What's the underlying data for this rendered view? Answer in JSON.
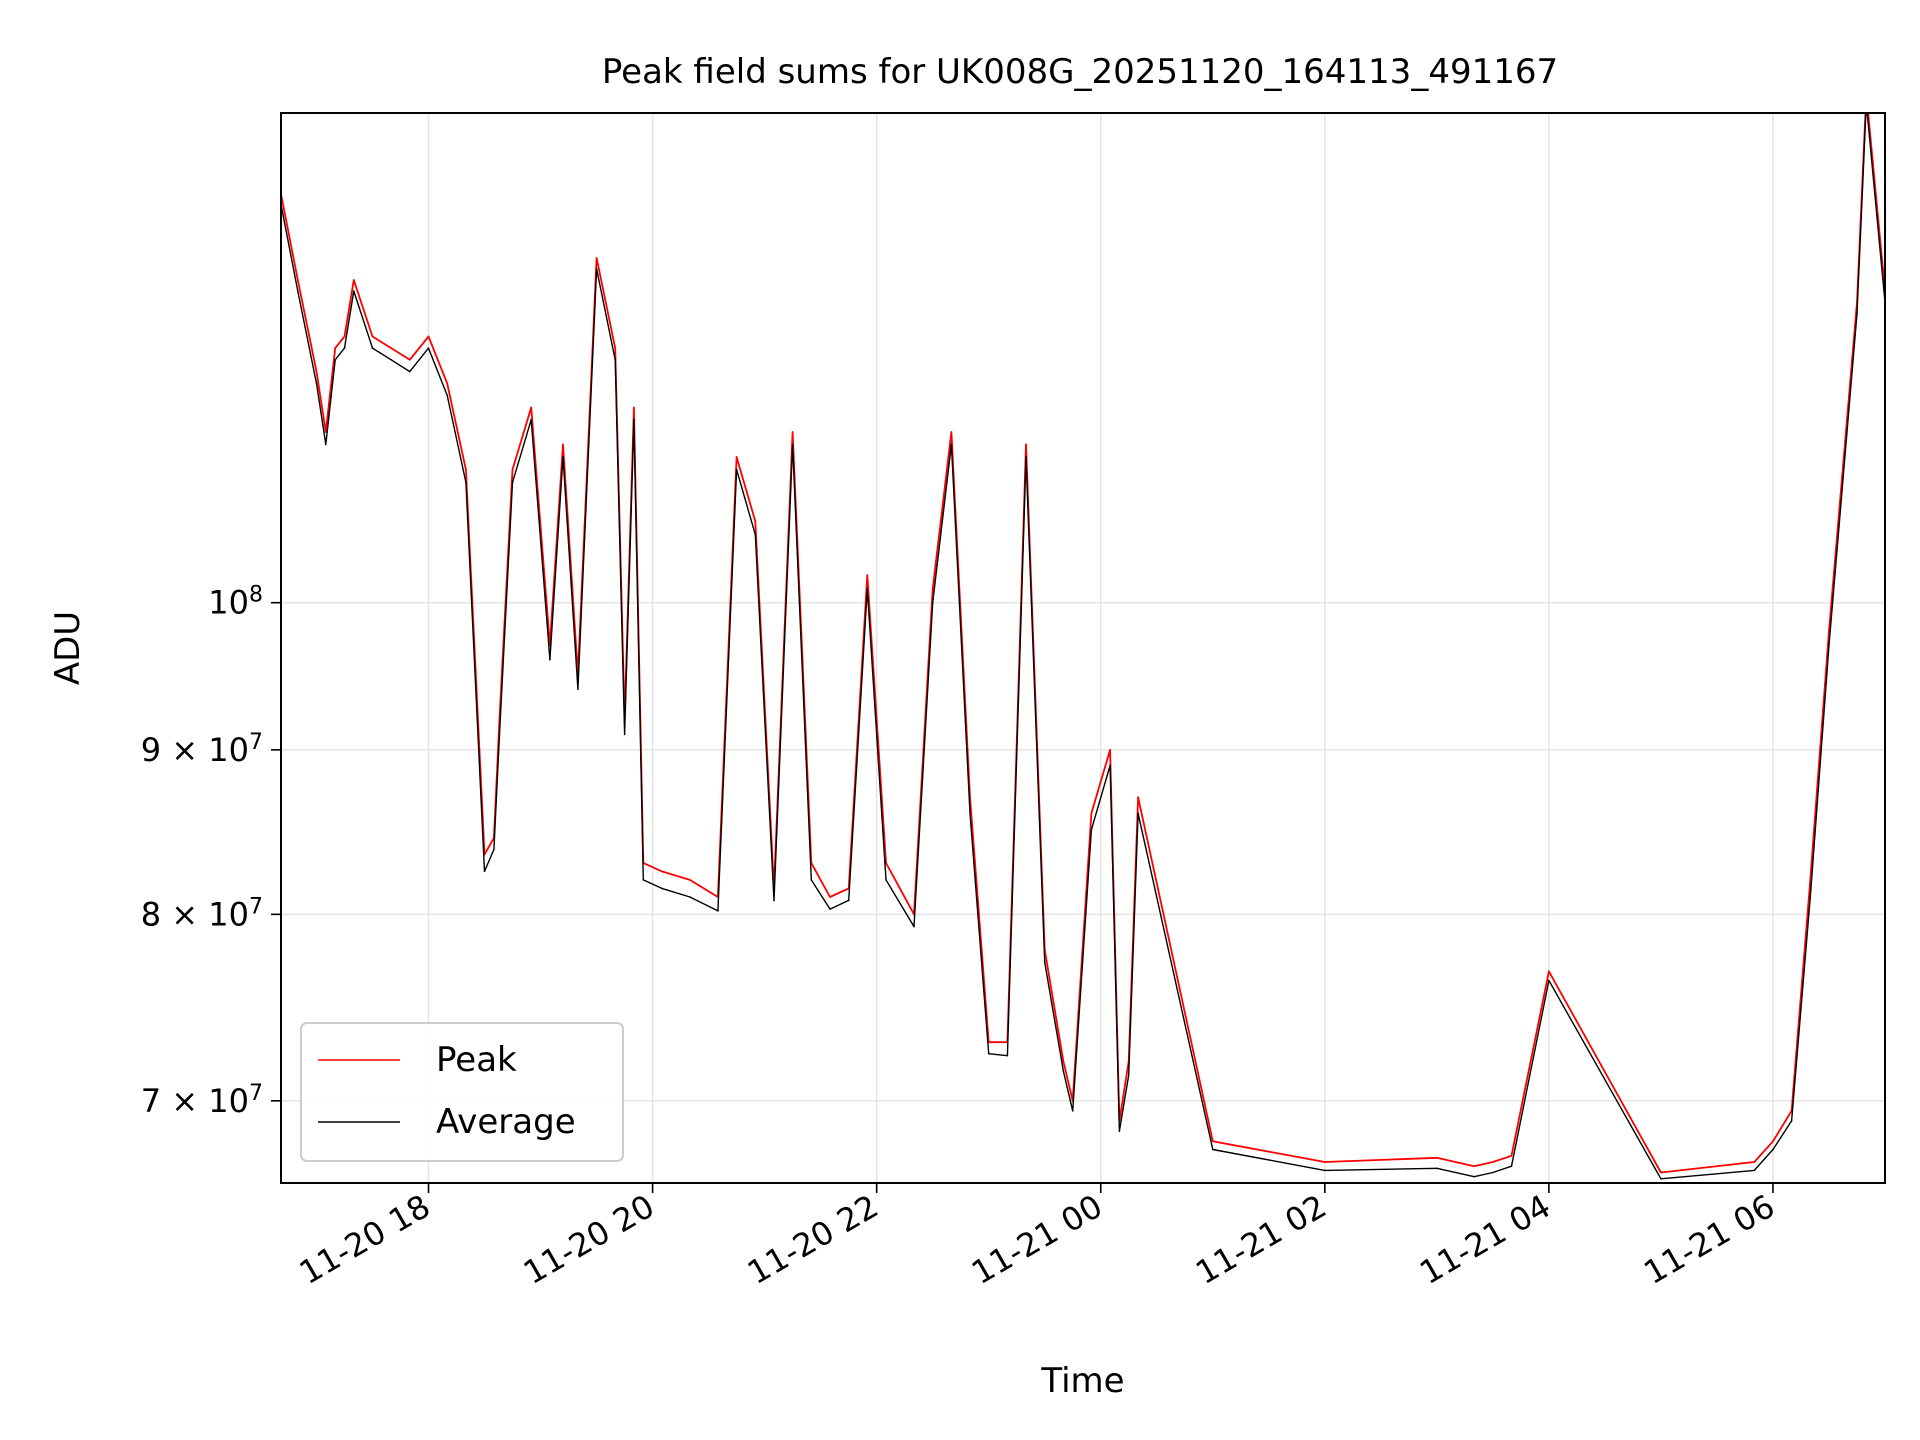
{
  "chart_data": {
    "type": "line",
    "title": "Peak field sums for UK008G_20251120_164113_491167",
    "xlabel": "Time",
    "ylabel": "ADU",
    "x_scale": "time",
    "y_scale": "log",
    "xlim": [
      "2025-11-20 16:41",
      "2025-11-21 07:00"
    ],
    "ylim": [
      66000000,
      142000000
    ],
    "x_ticks": [
      "2025-11-20 18:00",
      "2025-11-20 20:00",
      "2025-11-20 22:00",
      "2025-11-21 00:00",
      "2025-11-21 02:00",
      "2025-11-21 04:00",
      "2025-11-21 06:00"
    ],
    "x_tick_labels": [
      "11-20 18",
      "11-20 20",
      "11-20 22",
      "11-21 00",
      "11-21 02",
      "11-21 04",
      "11-21 06"
    ],
    "y_ticks": [
      70000000,
      80000000,
      90000000,
      100000000
    ],
    "y_tick_labels": [
      {
        "mant": "7 × 10",
        "exp": "7"
      },
      {
        "mant": "8 × 10",
        "exp": "7"
      },
      {
        "mant": "9 × 10",
        "exp": "7"
      },
      {
        "mant": "10",
        "exp": "8"
      }
    ],
    "grid": true,
    "legend": "lower-left",
    "series": [
      {
        "name": "Peak",
        "color": "#ff0000",
        "x": [
          "2025-11-20 16:41",
          "2025-11-20 16:50",
          "2025-11-20 17:00",
          "2025-11-20 17:05",
          "2025-11-20 17:10",
          "2025-11-20 17:15",
          "2025-11-20 17:20",
          "2025-11-20 17:30",
          "2025-11-20 17:40",
          "2025-11-20 17:50",
          "2025-11-20 18:00",
          "2025-11-20 18:10",
          "2025-11-20 18:20",
          "2025-11-20 18:30",
          "2025-11-20 18:35",
          "2025-11-20 18:38",
          "2025-11-20 18:45",
          "2025-11-20 18:55",
          "2025-11-20 19:05",
          "2025-11-20 19:12",
          "2025-11-20 19:20",
          "2025-11-20 19:30",
          "2025-11-20 19:40",
          "2025-11-20 19:45",
          "2025-11-20 19:50",
          "2025-11-20 19:55",
          "2025-11-20 20:05",
          "2025-11-20 20:20",
          "2025-11-20 20:35",
          "2025-11-20 20:45",
          "2025-11-20 20:55",
          "2025-11-20 21:05",
          "2025-11-20 21:15",
          "2025-11-20 21:25",
          "2025-11-20 21:35",
          "2025-11-20 21:45",
          "2025-11-20 21:55",
          "2025-11-20 22:05",
          "2025-11-20 22:20",
          "2025-11-20 22:30",
          "2025-11-20 22:40",
          "2025-11-20 22:50",
          "2025-11-20 23:00",
          "2025-11-20 23:10",
          "2025-11-20 23:20",
          "2025-11-20 23:30",
          "2025-11-20 23:40",
          "2025-11-20 23:45",
          "2025-11-20 23:55",
          "2025-11-21 00:05",
          "2025-11-21 00:10",
          "2025-11-21 00:15",
          "2025-11-21 00:20",
          "2025-11-21 01:00",
          "2025-11-21 02:00",
          "2025-11-21 03:00",
          "2025-11-21 03:20",
          "2025-11-21 03:30",
          "2025-11-21 03:40",
          "2025-11-21 04:00",
          "2025-11-21 05:00",
          "2025-11-21 05:50",
          "2025-11-21 06:00",
          "2025-11-21 06:10",
          "2025-11-21 06:20",
          "2025-11-21 06:30",
          "2025-11-21 06:45",
          "2025-11-21 06:50",
          "2025-11-21 07:00"
        ],
        "values": [
          134000000,
          126000000,
          118000000,
          113000000,
          120000000,
          121000000,
          126000000,
          121000000,
          120000000,
          119000000,
          121000000,
          117000000,
          110000000,
          83500000,
          84500000,
          92000000,
          110000000,
          115000000,
          97000000,
          112000000,
          95000000,
          128000000,
          120000000,
          92000000,
          115000000,
          83000000,
          82500000,
          82000000,
          81000000,
          111000000,
          106000000,
          81500000,
          113000000,
          83000000,
          81000000,
          81500000,
          102000000,
          83000000,
          80000000,
          101000000,
          113000000,
          87000000,
          73000000,
          73000000,
          112000000,
          78000000,
          72000000,
          70000000,
          86000000,
          90000000,
          69000000,
          72000000,
          87000000,
          68000000,
          67000000,
          67200000,
          66800000,
          67000000,
          67300000,
          76800000,
          66500000,
          67000000,
          68000000,
          69500000,
          82000000,
          98000000,
          124000000,
          144000000,
          125000000
        ]
      },
      {
        "name": "Average",
        "color": "#000000",
        "x": [
          "2025-11-20 16:41",
          "2025-11-20 16:50",
          "2025-11-20 17:00",
          "2025-11-20 17:05",
          "2025-11-20 17:10",
          "2025-11-20 17:15",
          "2025-11-20 17:20",
          "2025-11-20 17:30",
          "2025-11-20 17:40",
          "2025-11-20 17:50",
          "2025-11-20 18:00",
          "2025-11-20 18:10",
          "2025-11-20 18:20",
          "2025-11-20 18:30",
          "2025-11-20 18:35",
          "2025-11-20 18:38",
          "2025-11-20 18:45",
          "2025-11-20 18:55",
          "2025-11-20 19:05",
          "2025-11-20 19:12",
          "2025-11-20 19:20",
          "2025-11-20 19:30",
          "2025-11-20 19:40",
          "2025-11-20 19:45",
          "2025-11-20 19:50",
          "2025-11-20 19:55",
          "2025-11-20 20:05",
          "2025-11-20 20:20",
          "2025-11-20 20:35",
          "2025-11-20 20:45",
          "2025-11-20 20:55",
          "2025-11-20 21:05",
          "2025-11-20 21:15",
          "2025-11-20 21:25",
          "2025-11-20 21:35",
          "2025-11-20 21:45",
          "2025-11-20 21:55",
          "2025-11-20 22:05",
          "2025-11-20 22:20",
          "2025-11-20 22:30",
          "2025-11-20 22:40",
          "2025-11-20 22:50",
          "2025-11-20 23:00",
          "2025-11-20 23:10",
          "2025-11-20 23:20",
          "2025-11-20 23:30",
          "2025-11-20 23:40",
          "2025-11-20 23:45",
          "2025-11-20 23:55",
          "2025-11-21 00:05",
          "2025-11-21 00:10",
          "2025-11-21 00:15",
          "2025-11-21 00:20",
          "2025-11-21 01:00",
          "2025-11-21 02:00",
          "2025-11-21 03:00",
          "2025-11-21 03:20",
          "2025-11-21 03:30",
          "2025-11-21 03:40",
          "2025-11-21 04:00",
          "2025-11-21 05:00",
          "2025-11-21 05:50",
          "2025-11-21 06:00",
          "2025-11-21 06:10",
          "2025-11-21 06:20",
          "2025-11-21 06:30",
          "2025-11-21 06:45",
          "2025-11-21 06:50",
          "2025-11-21 07:00"
        ],
        "values": [
          133000000,
          125000000,
          117000000,
          112000000,
          119000000,
          120000000,
          125000000,
          120000000,
          119000000,
          118000000,
          120000000,
          116000000,
          109000000,
          82500000,
          83800000,
          91000000,
          109000000,
          114000000,
          96000000,
          111000000,
          94000000,
          127000000,
          119000000,
          91000000,
          114000000,
          82000000,
          81500000,
          81000000,
          80200000,
          110000000,
          105000000,
          80800000,
          112000000,
          82000000,
          80300000,
          80800000,
          101000000,
          82000000,
          79300000,
          100000000,
          112000000,
          86000000,
          72400000,
          72300000,
          111000000,
          77300000,
          71500000,
          69500000,
          85000000,
          89000000,
          68500000,
          71300000,
          86000000,
          67600000,
          66600000,
          66700000,
          66300000,
          66500000,
          66800000,
          76300000,
          66200000,
          66600000,
          67600000,
          69000000,
          81000000,
          97000000,
          123000000,
          143000000,
          124000000
        ]
      }
    ]
  }
}
